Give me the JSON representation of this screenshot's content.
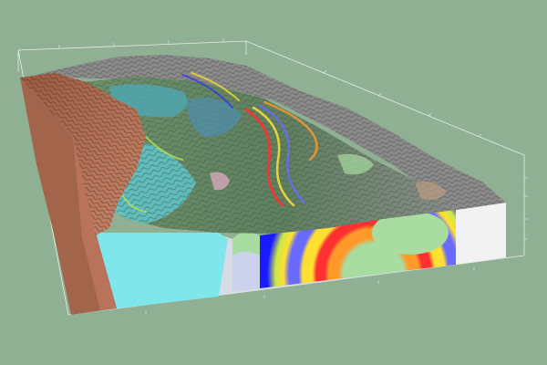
{
  "scene": {
    "background_color": "#8fb092",
    "axis_color": "#e8eee8",
    "terrain_colors": {
      "brown_cliff": "#b8735a",
      "brown_side": "#a3644c",
      "cyan_unit": "#7fe6ec",
      "gray_ridge": "#8a8a8a",
      "forest_green": "#6d8f6a",
      "green_light": "#a8dca0"
    },
    "section_colors": [
      "#1a1aff",
      "#6a6aff",
      "#ff3030",
      "#ff9a2a",
      "#ffe030",
      "#c8e848",
      "#a8dca0",
      "#88c8ff"
    ]
  }
}
